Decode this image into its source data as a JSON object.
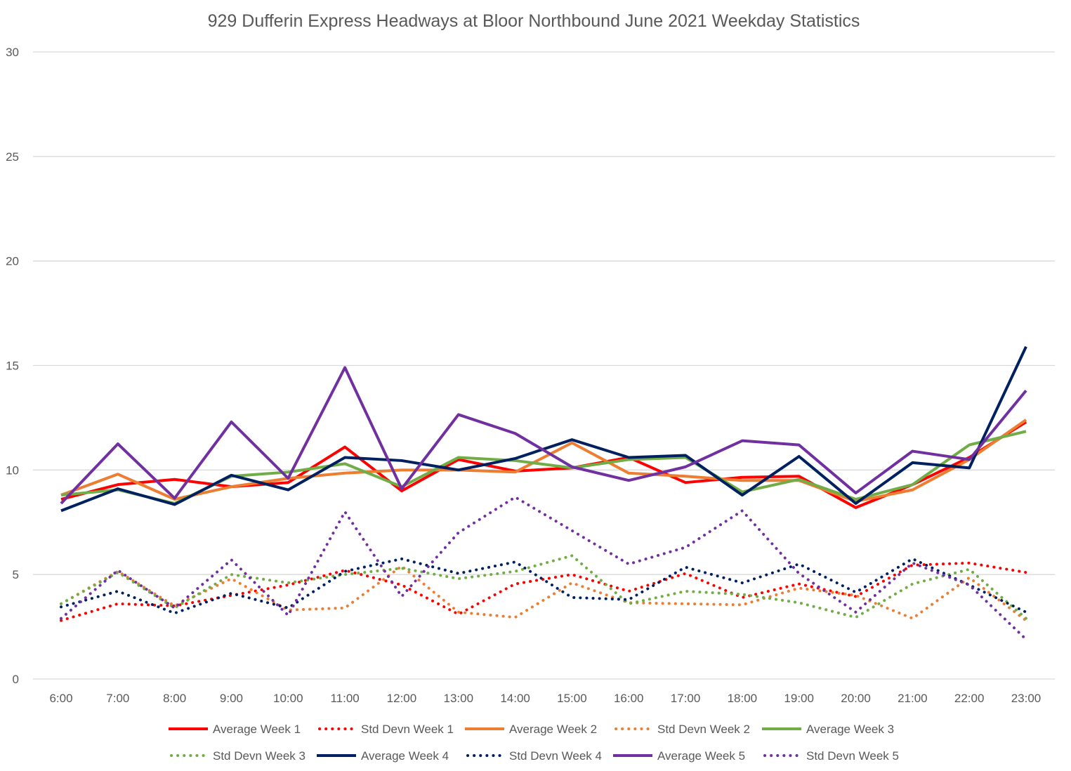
{
  "chart_data": {
    "type": "line",
    "title": "929 Dufferin Express Headways at Bloor Northbound June 2021 Weekday Statistics",
    "xlabel": "",
    "ylabel": "",
    "ylim": [
      0,
      30
    ],
    "yticks": [
      "0",
      "5",
      "10",
      "15",
      "20",
      "25",
      "30"
    ],
    "grid": true,
    "legend_position": "bottom",
    "categories": [
      "6:00",
      "7:00",
      "8:00",
      "9:00",
      "10:00",
      "11:00",
      "12:00",
      "13:00",
      "14:00",
      "15:00",
      "16:00",
      "17:00",
      "18:00",
      "19:00",
      "20:00",
      "21:00",
      "22:00",
      "23:00"
    ],
    "series": [
      {
        "name": "Average Week 1",
        "color": "#ff0000",
        "style": "solid",
        "values": [
          8.6,
          9.3,
          9.55,
          9.2,
          9.4,
          11.1,
          9.0,
          10.5,
          9.95,
          10.1,
          10.6,
          9.4,
          9.65,
          9.7,
          8.2,
          9.3,
          10.6,
          12.3
        ]
      },
      {
        "name": "Std Devn Week 1",
        "color": "#ff0000",
        "style": "dotted",
        "values": [
          2.8,
          3.6,
          3.5,
          4.0,
          4.5,
          5.2,
          4.5,
          3.1,
          4.55,
          5.0,
          4.2,
          5.05,
          3.9,
          4.55,
          3.95,
          5.45,
          5.55,
          5.1
        ]
      },
      {
        "name": "Average Week 2",
        "color": "#ed7d31",
        "style": "solid",
        "values": [
          8.8,
          9.8,
          8.6,
          9.2,
          9.6,
          9.85,
          10.0,
          10.0,
          9.9,
          11.3,
          9.85,
          9.7,
          9.5,
          9.5,
          8.5,
          9.05,
          10.5,
          12.4
        ]
      },
      {
        "name": "Std Devn Week 2",
        "color": "#ed7d31",
        "style": "dotted",
        "values": [
          3.6,
          5.15,
          3.5,
          4.8,
          3.3,
          3.4,
          5.4,
          3.2,
          2.95,
          4.6,
          3.65,
          3.6,
          3.55,
          4.35,
          4.0,
          2.9,
          4.85,
          2.8
        ]
      },
      {
        "name": "Average Week 3",
        "color": "#70ad47",
        "style": "solid",
        "values": [
          8.8,
          9.05,
          8.4,
          9.7,
          9.9,
          10.3,
          9.2,
          10.6,
          10.45,
          10.1,
          10.5,
          10.6,
          8.95,
          9.55,
          8.6,
          9.3,
          11.2,
          11.85
        ]
      },
      {
        "name": "Std Devn Week 3",
        "color": "#70ad47",
        "style": "dotted",
        "values": [
          3.6,
          5.1,
          3.4,
          5.0,
          4.6,
          5.0,
          5.3,
          4.8,
          5.15,
          5.9,
          3.6,
          4.2,
          4.05,
          3.65,
          2.95,
          4.55,
          5.25,
          2.9
        ]
      },
      {
        "name": "Average Week 4",
        "color": "#002060",
        "style": "solid",
        "values": [
          8.05,
          9.1,
          8.35,
          9.75,
          9.05,
          10.6,
          10.45,
          10.0,
          10.55,
          11.45,
          10.6,
          10.7,
          8.8,
          10.65,
          8.4,
          10.35,
          10.1,
          15.9
        ]
      },
      {
        "name": "Std Devn Week 4",
        "color": "#002060",
        "style": "dotted",
        "values": [
          3.45,
          4.2,
          3.15,
          4.1,
          3.4,
          5.15,
          5.75,
          5.05,
          5.6,
          3.9,
          3.8,
          5.35,
          4.6,
          5.5,
          4.15,
          5.75,
          4.5,
          3.2
        ]
      },
      {
        "name": "Average Week 5",
        "color": "#7030a0",
        "style": "solid",
        "values": [
          8.4,
          11.25,
          8.65,
          12.3,
          9.6,
          14.9,
          9.1,
          12.65,
          11.75,
          10.15,
          9.5,
          10.15,
          11.4,
          11.2,
          8.9,
          10.9,
          10.5,
          13.8
        ]
      },
      {
        "name": "Std Devn Week 5",
        "color": "#7030a0",
        "style": "dotted",
        "values": [
          2.9,
          5.2,
          3.4,
          5.7,
          3.05,
          8.0,
          3.95,
          7.0,
          8.7,
          7.1,
          5.5,
          6.3,
          8.05,
          5.05,
          3.2,
          5.55,
          4.5,
          1.9
        ]
      }
    ]
  }
}
